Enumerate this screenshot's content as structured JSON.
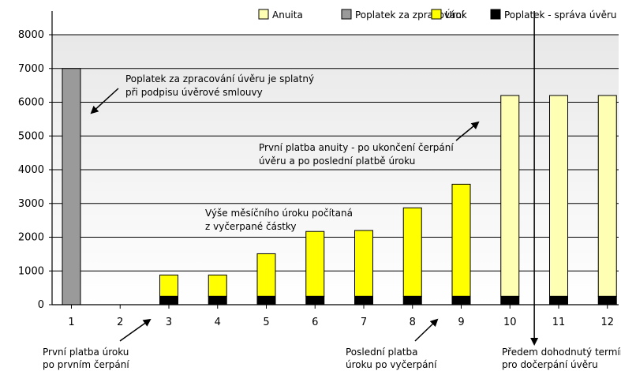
{
  "chart_data": {
    "type": "bar",
    "stacked": true,
    "categories": [
      "1",
      "2",
      "3",
      "4",
      "5",
      "6",
      "7",
      "8",
      "9",
      "10",
      "11",
      "12"
    ],
    "series": [
      {
        "name": "Anuita",
        "color": "#ffffb3",
        "values": [
          0,
          0,
          0,
          0,
          0,
          0,
          0,
          0,
          0,
          5950,
          5950,
          5950
        ]
      },
      {
        "name": "Poplatek za zpracování",
        "color": "#9a9a9a",
        "values": [
          7000,
          0,
          0,
          0,
          0,
          0,
          0,
          0,
          0,
          0,
          0,
          0
        ]
      },
      {
        "name": "Úrok",
        "color": "#ffff00",
        "values": [
          0,
          0,
          630,
          630,
          1260,
          1920,
          1950,
          2620,
          3320,
          0,
          0,
          0
        ]
      },
      {
        "name": "Poplatek - správa úvěru",
        "color": "#000000",
        "values": [
          0,
          0,
          250,
          250,
          250,
          250,
          250,
          250,
          250,
          250,
          250,
          250
        ]
      }
    ],
    "ylim": [
      0,
      8000
    ],
    "yticks": [
      "0",
      "1000",
      "2000",
      "3000",
      "4000",
      "5000",
      "6000",
      "7000",
      "8000"
    ],
    "grid": true,
    "legend_position": "top-right",
    "vertical_marker_after_category": "10",
    "annotations": [
      {
        "id": "fee",
        "lines": [
          "Poplatek za zpracování úvěru je splatný",
          "při podpisu úvěrové smlouvy"
        ]
      },
      {
        "id": "annuity",
        "lines": [
          "První platba anuity - po ukončení čerpání",
          "úvěru a po poslední platbě úroku"
        ]
      },
      {
        "id": "interest",
        "lines": [
          "Výše měsíčního úroku počítaná",
          "z vyčerpané částky"
        ]
      },
      {
        "id": "first-interest",
        "lines": [
          "První platba úroku",
          "po prvním čerpání"
        ]
      },
      {
        "id": "last-interest",
        "lines": [
          "Poslední platba",
          "úroku po vyčerpání"
        ]
      },
      {
        "id": "deadline",
        "lines": [
          "Předem dohodnutý termín",
          "pro dočerpání úvěru"
        ]
      }
    ]
  }
}
